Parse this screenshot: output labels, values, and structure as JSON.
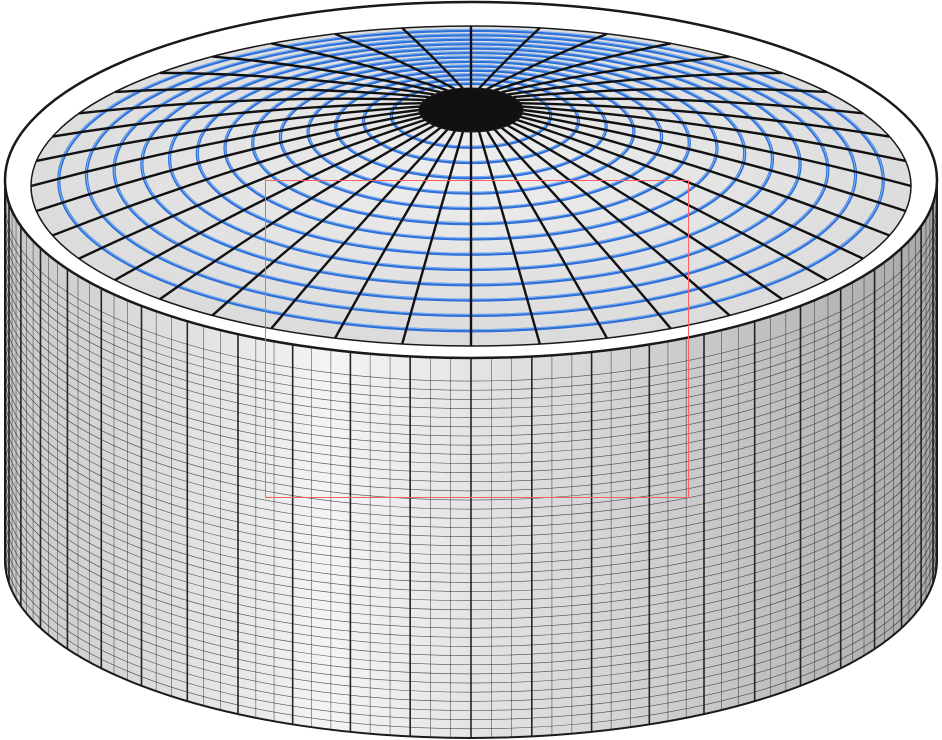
{
  "viewport": {
    "background": "#ffffff"
  },
  "model": {
    "object": "cylindrical-tank-dome-roof",
    "wall_fill_light": "#f4f4f4",
    "wall_fill_dark": "#a9a9a9",
    "wall_line_color": "#1a1a1a",
    "roof_rib_color": "#111111",
    "roof_ring_color": "#2f6fd6",
    "roof_highlight": "#8fc4ff",
    "roof_fill": "#d9d9d9",
    "rim_color": "#ffffff",
    "hub_color": "#111111"
  },
  "selection": {
    "color": "#ff6060"
  }
}
